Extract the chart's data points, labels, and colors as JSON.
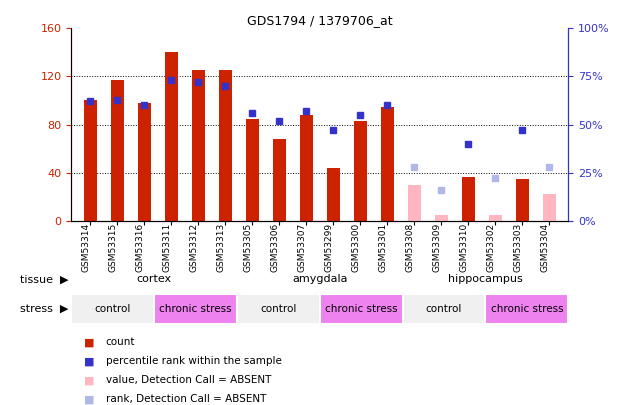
{
  "title": "GDS1794 / 1379706_at",
  "samples": [
    "GSM53314",
    "GSM53315",
    "GSM53316",
    "GSM53311",
    "GSM53312",
    "GSM53313",
    "GSM53305",
    "GSM53306",
    "GSM53307",
    "GSM53299",
    "GSM53300",
    "GSM53301",
    "GSM53308",
    "GSM53309",
    "GSM53310",
    "GSM53302",
    "GSM53303",
    "GSM53304"
  ],
  "count_values": [
    100,
    117,
    98,
    140,
    125,
    125,
    85,
    68,
    88,
    44,
    83,
    95,
    null,
    null,
    36,
    null,
    35,
    null
  ],
  "count_absent": [
    null,
    null,
    null,
    null,
    null,
    null,
    null,
    null,
    null,
    null,
    null,
    null,
    30,
    5,
    null,
    5,
    null,
    22
  ],
  "rank_values": [
    62,
    63,
    60,
    73,
    72,
    70,
    56,
    52,
    57,
    47,
    55,
    60,
    null,
    null,
    40,
    null,
    47,
    null
  ],
  "rank_absent": [
    null,
    null,
    null,
    null,
    null,
    null,
    null,
    null,
    null,
    null,
    null,
    null,
    28,
    16,
    null,
    22,
    null,
    28
  ],
  "ylim_left": [
    0,
    160
  ],
  "ylim_right": [
    0,
    100
  ],
  "yticks_left": [
    0,
    40,
    80,
    120,
    160
  ],
  "yticks_right": [
    0,
    25,
    50,
    75,
    100
  ],
  "ytick_labels_left": [
    "0",
    "40",
    "80",
    "120",
    "160"
  ],
  "ytick_labels_right": [
    "0%",
    "25%",
    "50%",
    "75%",
    "100%"
  ],
  "tissue_groups": [
    {
      "label": "cortex",
      "start": 0,
      "end": 6
    },
    {
      "label": "amygdala",
      "start": 6,
      "end": 12
    },
    {
      "label": "hippocampus",
      "start": 12,
      "end": 18
    }
  ],
  "stress_groups": [
    {
      "label": "control",
      "start": 0,
      "end": 3,
      "color": "#f0f0f0"
    },
    {
      "label": "chronic stress",
      "start": 3,
      "end": 6,
      "color": "#ee82ee"
    },
    {
      "label": "control",
      "start": 6,
      "end": 9,
      "color": "#f0f0f0"
    },
    {
      "label": "chronic stress",
      "start": 9,
      "end": 12,
      "color": "#ee82ee"
    },
    {
      "label": "control",
      "start": 12,
      "end": 15,
      "color": "#f0f0f0"
    },
    {
      "label": "chronic stress",
      "start": 15,
      "end": 18,
      "color": "#ee82ee"
    }
  ],
  "color_count": "#cc2200",
  "color_rank": "#3333cc",
  "color_count_absent": "#ffb6c1",
  "color_rank_absent": "#b0b8e8",
  "tissue_color": "#90ee90",
  "stress_control_color": "#f0f0f0",
  "stress_chronic_color": "#ee82ee",
  "bar_width": 0.5,
  "dotted_grid": [
    40,
    80,
    120
  ],
  "legend_items": [
    {
      "color": "#cc2200",
      "label": "count"
    },
    {
      "color": "#3333cc",
      "label": "percentile rank within the sample"
    },
    {
      "color": "#ffb6c1",
      "label": "value, Detection Call = ABSENT"
    },
    {
      "color": "#b0b8e8",
      "label": "rank, Detection Call = ABSENT"
    }
  ],
  "xticklabel_bg": "#d8d8d8"
}
